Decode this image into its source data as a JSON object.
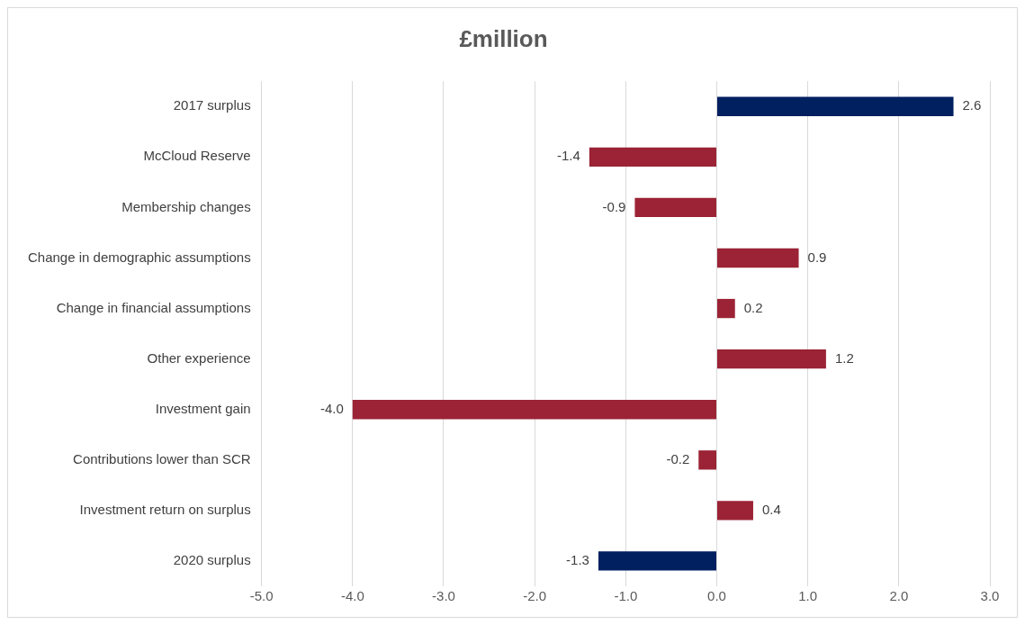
{
  "chart_data": {
    "type": "bar",
    "orientation": "horizontal",
    "title": "£million",
    "categories": [
      "2017 surplus",
      "McCloud Reserve",
      "Membership changes",
      "Change in demographic assumptions",
      "Change in financial assumptions",
      "Other experience",
      "Investment gain",
      "Contributions lower than SCR",
      "Investment return on surplus",
      "2020 surplus"
    ],
    "values": [
      2.6,
      -1.4,
      -0.9,
      0.9,
      0.2,
      1.2,
      -4.0,
      -0.2,
      0.4,
      -1.3
    ],
    "colors": [
      "#002060",
      "#9b2335",
      "#9b2335",
      "#9b2335",
      "#9b2335",
      "#9b2335",
      "#9b2335",
      "#9b2335",
      "#9b2335",
      "#002060"
    ],
    "value_labels": [
      "2.6",
      "-1.4",
      "-0.9",
      "0.9",
      "0.2",
      "1.2",
      "-4.0",
      "-0.2",
      "0.4",
      "-1.3"
    ],
    "xlim": [
      -5,
      3
    ],
    "xticks": [
      {
        "value": -5,
        "label": "-5.0"
      },
      {
        "value": -4,
        "label": "-4.0"
      },
      {
        "value": -3,
        "label": "-3.0"
      },
      {
        "value": -2,
        "label": "-2.0"
      },
      {
        "value": -1,
        "label": "-1.0"
      },
      {
        "value": 0,
        "label": "0.0"
      },
      {
        "value": 1,
        "label": "1.0"
      },
      {
        "value": 2,
        "label": "2.0"
      },
      {
        "value": 3,
        "label": "3.0"
      }
    ],
    "grid": "x",
    "legend": false
  }
}
